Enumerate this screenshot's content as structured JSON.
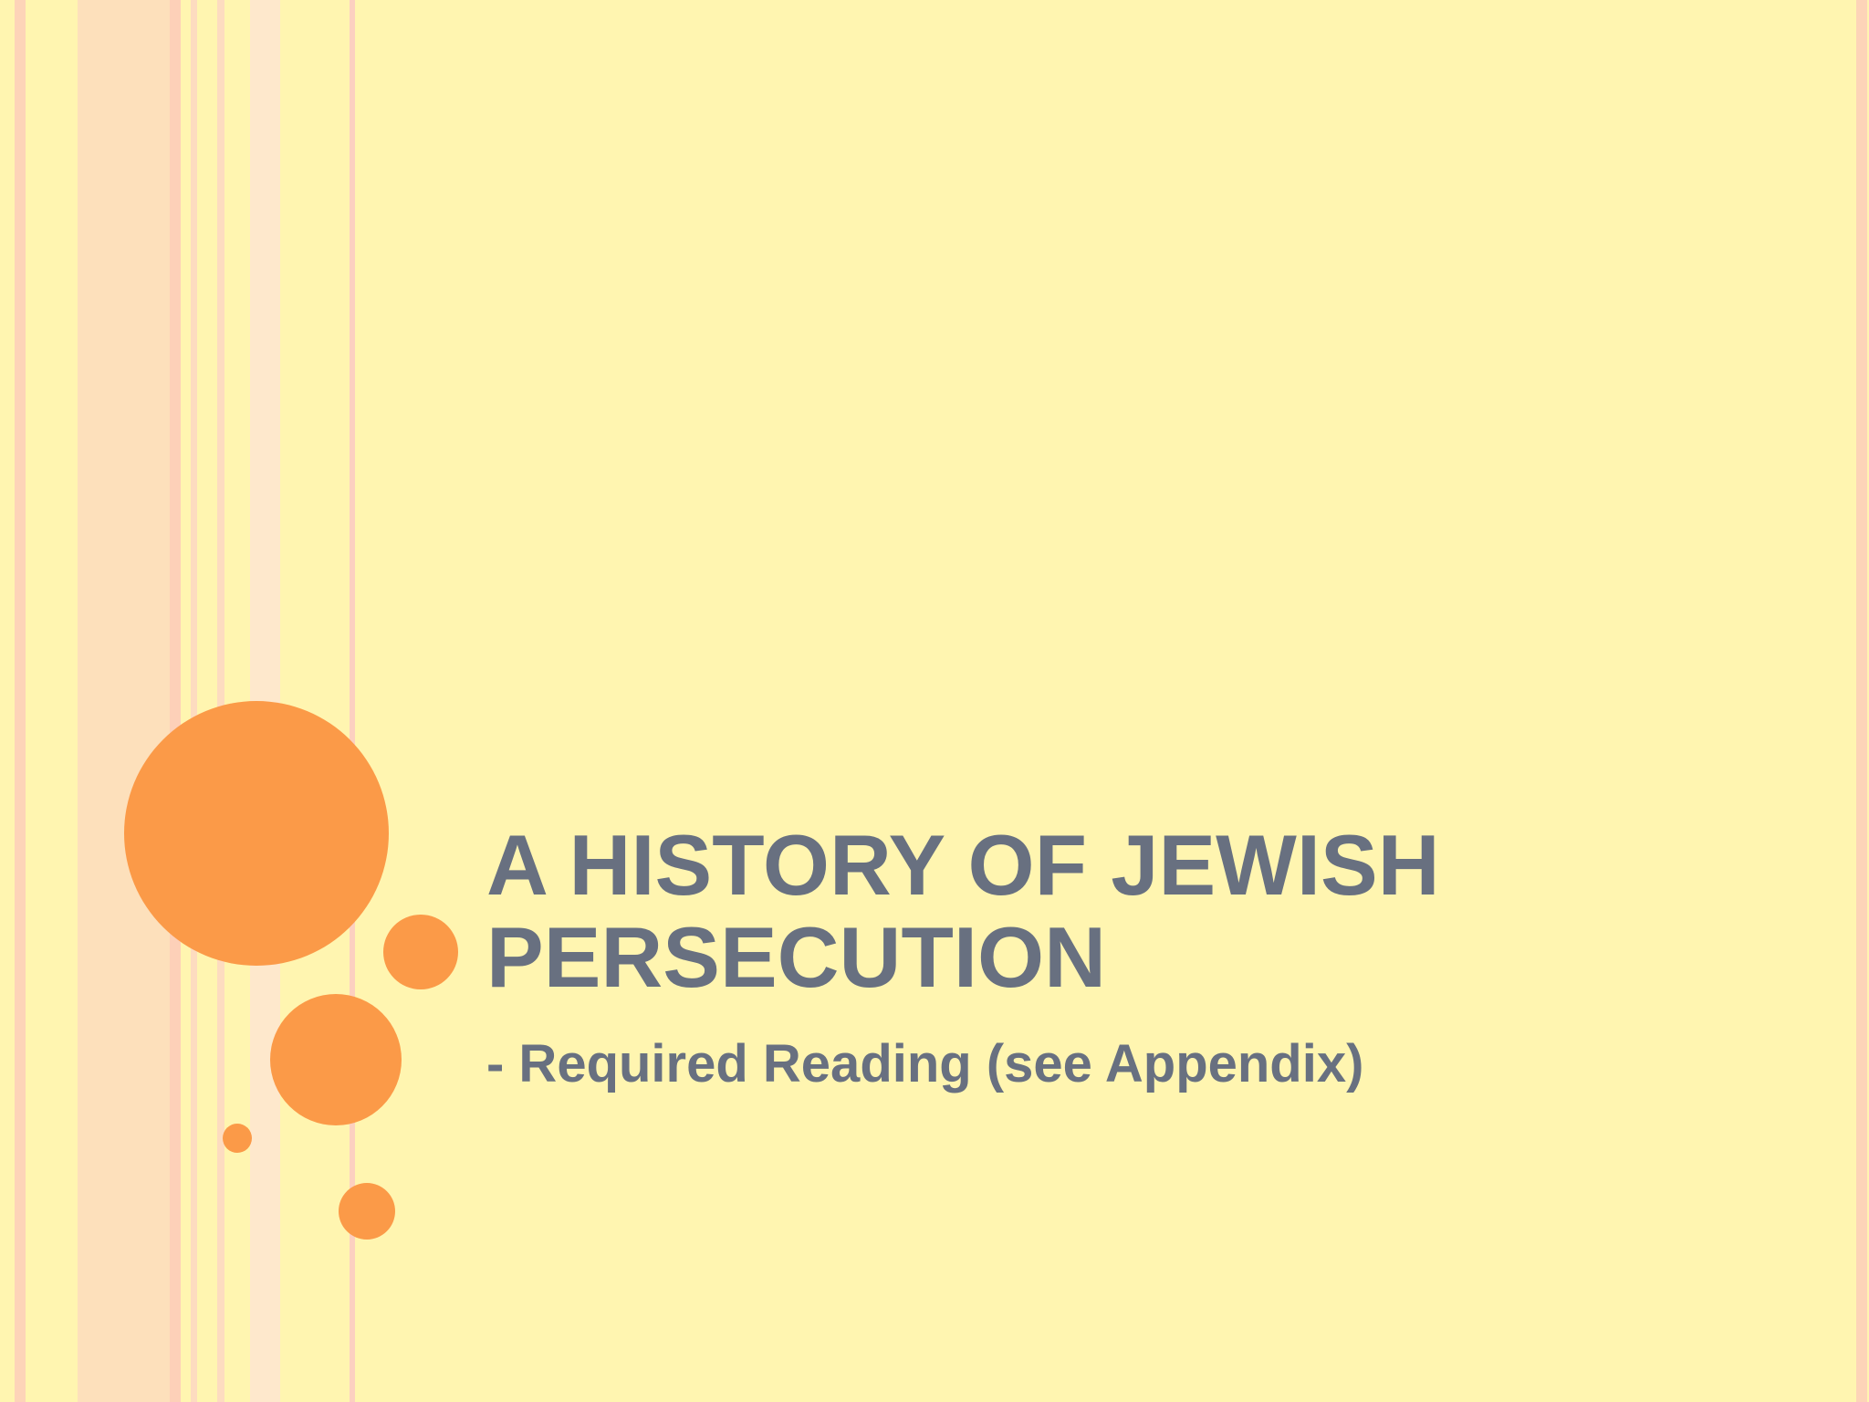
{
  "slide": {
    "title": [
      "A HISTORY OF JEWISH",
      "PERSECUTION"
    ],
    "subtitle": "- Required Reading (see Appendix)"
  }
}
